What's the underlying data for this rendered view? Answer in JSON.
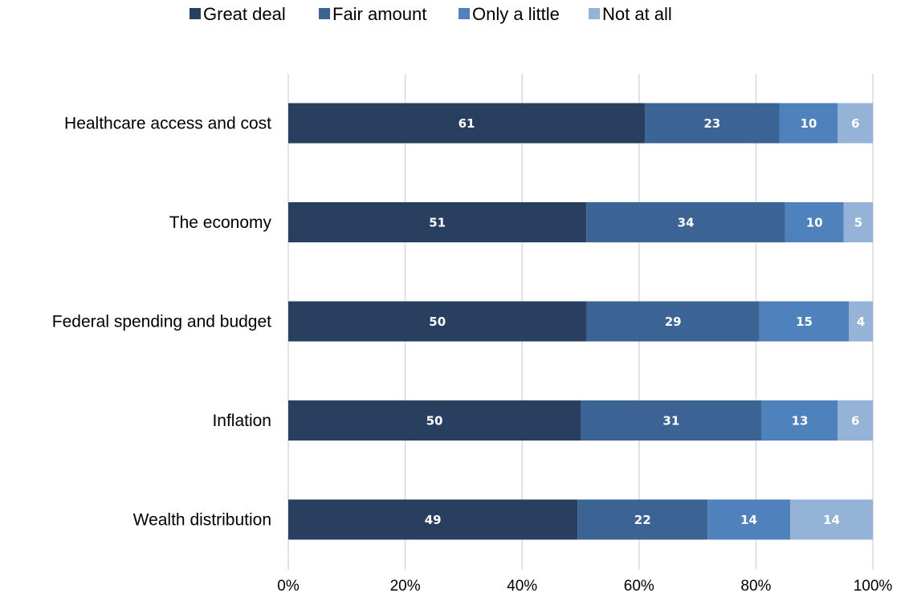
{
  "chart_data": {
    "type": "bar",
    "orientation": "horizontal",
    "stacked": true,
    "normalized": true,
    "categories": [
      "Healthcare access and cost",
      "The economy",
      "Federal spending and budget",
      "Inflation",
      "Wealth distribution"
    ],
    "series": [
      {
        "name": "Great deal",
        "values": [
          61,
          51,
          50,
          50,
          49
        ],
        "color": "#283f5f"
      },
      {
        "name": "Fair amount",
        "values": [
          23,
          34,
          29,
          31,
          22
        ],
        "color": "#3b6394"
      },
      {
        "name": "Only a little",
        "values": [
          10,
          10,
          15,
          13,
          14
        ],
        "color": "#4f81bd"
      },
      {
        "name": "Not at all",
        "values": [
          6,
          5,
          4,
          6,
          14
        ],
        "color": "#95b3d7"
      }
    ],
    "x_ticks": [
      "0%",
      "20%",
      "40%",
      "60%",
      "80%",
      "100%"
    ],
    "xlim": [
      0,
      100
    ],
    "grid": "vertical",
    "legend_position": "top"
  }
}
